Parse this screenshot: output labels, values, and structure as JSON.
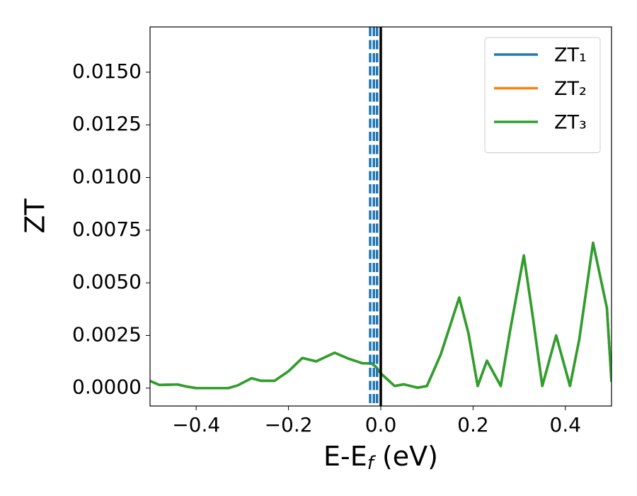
{
  "chart_data": {
    "type": "line",
    "ylabel": "ZT",
    "xlabel": [
      "E-E",
      "f",
      " (eV)"
    ],
    "xlim": [
      -0.5,
      0.5
    ],
    "ylim": [
      -0.00085,
      0.01715
    ],
    "xticks": [
      {
        "value": -0.4,
        "label": "−0.4"
      },
      {
        "value": -0.2,
        "label": "−0.2"
      },
      {
        "value": 0.0,
        "label": "0.0"
      },
      0.2,
      0.4
    ],
    "yticks": [
      {
        "value": 0,
        "label": "0.0000"
      },
      {
        "value": 0.0025,
        "label": "0.0025"
      },
      {
        "value": 0.005,
        "label": "0.0050"
      },
      {
        "value": 0.0075,
        "label": "0.0075"
      },
      {
        "value": 0.01,
        "label": "0.0100"
      },
      {
        "value": 0.0125,
        "label": "0.0125"
      },
      {
        "value": 0.015,
        "label": "0.0150"
      }
    ],
    "grid": false,
    "legend": "upper right",
    "vlines": [
      {
        "x": -0.023,
        "color": "#1f77b4",
        "style": "dashed"
      },
      {
        "x": -0.015,
        "color": "#1f77b4",
        "style": "dashed"
      },
      {
        "x": -0.008,
        "color": "#1f77b4",
        "style": "dashed"
      },
      {
        "x": 0.0,
        "color": "#000000",
        "style": "solid"
      }
    ],
    "x": [
      -0.5,
      -0.48,
      -0.44,
      -0.42,
      -0.4,
      -0.33,
      -0.31,
      -0.28,
      -0.26,
      -0.23,
      -0.2,
      -0.17,
      -0.14,
      -0.1,
      -0.07,
      -0.04,
      -0.02,
      -0.01,
      0.0,
      0.03,
      0.05,
      0.08,
      0.1,
      0.13,
      0.17,
      0.19,
      0.21,
      0.23,
      0.26,
      0.28,
      0.31,
      0.33,
      0.35,
      0.38,
      0.41,
      0.43,
      0.46,
      0.49,
      0.5
    ],
    "series": [
      {
        "name": "ZT₁",
        "color": "#1f77b4",
        "values": [
          0.00034,
          0.00015,
          0.00017,
          7e-05,
          0,
          0,
          0.00013,
          0.00047,
          0.00035,
          0.00035,
          0.0008,
          0.00143,
          0.00127,
          0.00168,
          0.0014,
          0.00118,
          0.00117,
          0.001,
          0.0007,
          0.0001,
          0.00018,
          2e-05,
          0.0001,
          0.0016,
          0.0043,
          0.0026,
          0.0001,
          0.0013,
          0.0001,
          0.0027,
          0.0063,
          0.0033,
          0.0001,
          0.0025,
          0.0001,
          0.0023,
          0.0069,
          0.0038,
          0.0003
        ]
      },
      {
        "name": "ZT₂",
        "color": "#ff7f0e",
        "values": [
          0.00034,
          0.00015,
          0.00017,
          7e-05,
          0,
          0,
          0.00013,
          0.00047,
          0.00035,
          0.00035,
          0.0008,
          0.00143,
          0.00127,
          0.00168,
          0.0014,
          0.00118,
          0.00117,
          0.001,
          0.0007,
          0.0001,
          0.00018,
          2e-05,
          0.0001,
          0.0016,
          0.0043,
          0.0026,
          0.0001,
          0.0013,
          0.0001,
          0.0027,
          0.0063,
          0.0033,
          0.0001,
          0.0025,
          0.0001,
          0.0023,
          0.0069,
          0.0038,
          0.0003
        ]
      },
      {
        "name": "ZT₃",
        "color": "#2ca02c",
        "values": [
          0.00034,
          0.00015,
          0.00017,
          7e-05,
          0,
          0,
          0.00013,
          0.00047,
          0.00035,
          0.00035,
          0.0008,
          0.00143,
          0.00127,
          0.00168,
          0.0014,
          0.00118,
          0.00117,
          0.001,
          0.0007,
          0.0001,
          0.00018,
          2e-05,
          0.0001,
          0.0016,
          0.0043,
          0.0026,
          0.0001,
          0.0013,
          0.0001,
          0.0027,
          0.0063,
          0.0033,
          0.0001,
          0.0025,
          0.0001,
          0.0023,
          0.0069,
          0.0038,
          0.0003
        ]
      }
    ]
  }
}
